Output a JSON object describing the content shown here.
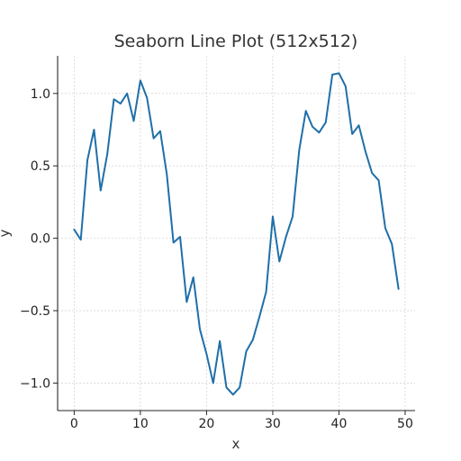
{
  "chart_data": {
    "type": "line",
    "title": "Seaborn Line Plot (512x512)",
    "xlabel": "x",
    "ylabel": "y",
    "xlim": [
      -2.5,
      51.5
    ],
    "ylim": [
      -1.19,
      1.26
    ],
    "xticks": [
      0,
      10,
      20,
      30,
      40,
      50
    ],
    "yticks": [
      -1.0,
      -0.5,
      0.0,
      0.5,
      1.0
    ],
    "xtick_labels": [
      "0",
      "10",
      "20",
      "30",
      "40",
      "50"
    ],
    "ytick_labels": [
      "−1.0",
      "−0.5",
      "0.0",
      "0.5",
      "1.0"
    ],
    "grid": true,
    "series": [
      {
        "color": "#1f6fa8",
        "x": [
          0,
          1,
          2,
          3,
          4,
          5,
          6,
          7,
          8,
          9,
          10,
          11,
          12,
          13,
          14,
          15,
          16,
          17,
          18,
          19,
          20,
          21,
          22,
          23,
          24,
          25,
          26,
          27,
          28,
          29,
          30,
          31,
          32,
          33,
          34,
          35,
          36,
          37,
          38,
          39,
          40,
          41,
          42,
          43,
          44,
          45,
          46,
          47,
          48,
          49
        ],
        "y": [
          0.06,
          -0.01,
          0.54,
          0.75,
          0.33,
          0.58,
          0.96,
          0.93,
          1.0,
          0.81,
          1.09,
          0.97,
          0.69,
          0.74,
          0.44,
          -0.03,
          0.01,
          -0.44,
          -0.27,
          -0.63,
          -0.8,
          -1.0,
          -0.71,
          -1.03,
          -1.08,
          -1.03,
          -0.78,
          -0.7,
          -0.54,
          -0.37,
          0.15,
          -0.16,
          0.01,
          0.15,
          0.61,
          0.88,
          0.77,
          0.73,
          0.8,
          1.13,
          1.14,
          1.05,
          0.72,
          0.78,
          0.6,
          0.45,
          0.4,
          0.07,
          -0.04,
          -0.35
        ]
      }
    ]
  }
}
